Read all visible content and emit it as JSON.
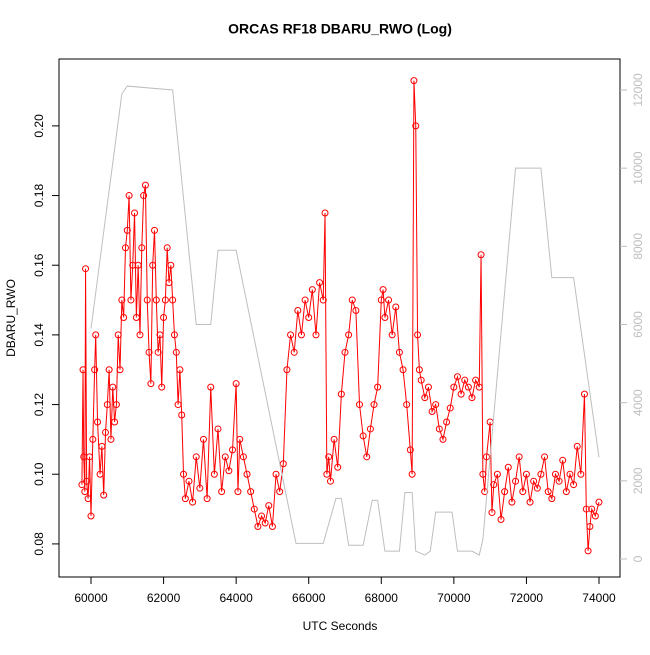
{
  "chart_data": {
    "type": "line",
    "title": "ORCAS RF18 DBARU_RWO (Log)",
    "x_label": "UTC Seconds",
    "y_label": "DBARU_RWO",
    "xlim": [
      59118,
      74579
    ],
    "xticks": [
      60000,
      62000,
      64000,
      66000,
      68000,
      70000,
      72000,
      74000
    ],
    "ylim": [
      0.0705,
      0.2192
    ],
    "yticks": [
      0.08,
      {
        "value": 0.1,
        "label": "0.10"
      },
      0.12,
      0.14,
      0.16,
      0.18,
      {
        "value": 0.2,
        "label": "0.20"
      }
    ],
    "y2lim": [
      -461,
      12793
    ],
    "y2ticks": [
      0,
      2000,
      4000,
      6000,
      8000,
      10000,
      12000
    ],
    "series": [
      {
        "color": "#ff0000",
        "markers": true,
        "x": [
          59750,
          59780,
          59800,
          59830,
          59850,
          59880,
          59920,
          59960,
          60000,
          60050,
          60100,
          60130,
          60180,
          60250,
          60300,
          60350,
          60400,
          60450,
          60500,
          60550,
          60600,
          60650,
          60700,
          60750,
          60800,
          60850,
          60900,
          60950,
          61000,
          61050,
          61100,
          61150,
          61200,
          61250,
          61300,
          61350,
          61400,
          61450,
          61500,
          61550,
          61600,
          61650,
          61700,
          61750,
          61800,
          61850,
          61900,
          61950,
          62000,
          62050,
          62100,
          62150,
          62200,
          62250,
          62300,
          62350,
          62400,
          62450,
          62500,
          62550,
          62600,
          62700,
          62800,
          62900,
          63000,
          63100,
          63200,
          63300,
          63400,
          63500,
          63600,
          63700,
          63800,
          63900,
          64000,
          64050,
          64100,
          64200,
          64300,
          64400,
          64500,
          64600,
          64700,
          64800,
          64900,
          65000,
          65100,
          65200,
          65300,
          65400,
          65500,
          65600,
          65700,
          65800,
          65900,
          66000,
          66100,
          66200,
          66300,
          66400,
          66450,
          66500,
          66550,
          66600,
          66700,
          66800,
          66900,
          67000,
          67100,
          67200,
          67300,
          67400,
          67500,
          67600,
          67700,
          67800,
          67900,
          68000,
          68050,
          68100,
          68200,
          68300,
          68400,
          68500,
          68600,
          68700,
          68800,
          68850,
          68900,
          68950,
          69000,
          69050,
          69100,
          69200,
          69300,
          69400,
          69500,
          69600,
          69700,
          69800,
          69900,
          70000,
          70100,
          70200,
          70300,
          70400,
          70500,
          70600,
          70700,
          70750,
          70800,
          70850,
          70900,
          71000,
          71050,
          71100,
          71200,
          71300,
          71400,
          71500,
          71600,
          71700,
          71800,
          71900,
          72000,
          72100,
          72200,
          72300,
          72400,
          72500,
          72600,
          72700,
          72800,
          72900,
          73000,
          73100,
          73200,
          73300,
          73400,
          73500,
          73600,
          73650,
          73700,
          73750,
          73800,
          73900,
          74000
        ],
        "values": [
          0.097,
          0.13,
          0.105,
          0.095,
          0.159,
          0.098,
          0.093,
          0.105,
          0.088,
          0.11,
          0.13,
          0.14,
          0.115,
          0.1,
          0.108,
          0.094,
          0.112,
          0.12,
          0.13,
          0.11,
          0.125,
          0.115,
          0.12,
          0.14,
          0.13,
          0.15,
          0.145,
          0.165,
          0.17,
          0.18,
          0.15,
          0.16,
          0.175,
          0.145,
          0.16,
          0.14,
          0.165,
          0.18,
          0.183,
          0.15,
          0.135,
          0.126,
          0.16,
          0.17,
          0.15,
          0.135,
          0.14,
          0.125,
          0.145,
          0.15,
          0.165,
          0.155,
          0.16,
          0.15,
          0.14,
          0.135,
          0.12,
          0.13,
          0.117,
          0.1,
          0.093,
          0.098,
          0.092,
          0.105,
          0.096,
          0.11,
          0.093,
          0.125,
          0.1,
          0.113,
          0.095,
          0.105,
          0.101,
          0.107,
          0.126,
          0.095,
          0.11,
          0.105,
          0.1,
          0.095,
          0.09,
          0.085,
          0.088,
          0.086,
          0.091,
          0.085,
          0.1,
          0.095,
          0.103,
          0.13,
          0.14,
          0.135,
          0.147,
          0.14,
          0.15,
          0.145,
          0.153,
          0.14,
          0.155,
          0.15,
          0.175,
          0.1,
          0.105,
          0.098,
          0.11,
          0.102,
          0.123,
          0.135,
          0.14,
          0.15,
          0.147,
          0.12,
          0.111,
          0.105,
          0.113,
          0.12,
          0.125,
          0.15,
          0.153,
          0.145,
          0.15,
          0.14,
          0.148,
          0.135,
          0.13,
          0.12,
          0.107,
          0.1,
          0.213,
          0.2,
          0.14,
          0.13,
          0.127,
          0.122,
          0.125,
          0.118,
          0.12,
          0.113,
          0.11,
          0.115,
          0.119,
          0.125,
          0.128,
          0.123,
          0.127,
          0.125,
          0.122,
          0.127,
          0.125,
          0.163,
          0.1,
          0.095,
          0.105,
          0.115,
          0.089,
          0.097,
          0.1,
          0.087,
          0.095,
          0.102,
          0.092,
          0.098,
          0.105,
          0.095,
          0.1,
          0.092,
          0.098,
          0.096,
          0.1,
          0.105,
          0.095,
          0.093,
          0.1,
          0.098,
          0.104,
          0.095,
          0.1,
          0.097,
          0.108,
          0.1,
          0.123,
          0.09,
          0.078,
          0.085,
          0.09,
          0.088,
          0.092
        ]
      },
      {
        "color": "#bebebe",
        "axis": "y2",
        "markers": false,
        "x": [
          60000,
          60850,
          61000,
          62250,
          62900,
          63300,
          63500,
          64000,
          65650,
          66400,
          66750,
          66900,
          67100,
          67500,
          67750,
          67900,
          68100,
          68500,
          68650,
          68850,
          68950,
          69200,
          69350,
          69500,
          69950,
          70100,
          70500,
          70700,
          70800,
          71700,
          72400,
          72700,
          73300,
          74000
        ],
        "values": [
          5900,
          11900,
          12100,
          12000,
          6000,
          6000,
          7900,
          7900,
          400,
          400,
          1550,
          1550,
          350,
          350,
          1500,
          1500,
          200,
          200,
          1700,
          1700,
          200,
          100,
          200,
          1200,
          1200,
          200,
          200,
          100,
          500,
          10000,
          10000,
          7200,
          7200,
          2600
        ]
      }
    ]
  }
}
